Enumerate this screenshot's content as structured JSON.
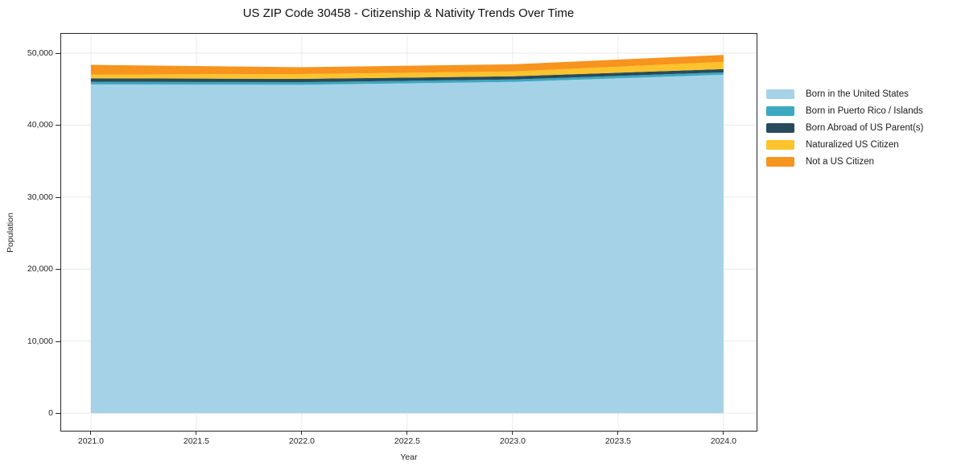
{
  "chart_data": {
    "type": "area",
    "stacked": true,
    "title": "US ZIP Code 30458 - Citizenship & Nativity Trends Over Time",
    "xlabel": "Year",
    "ylabel": "Population",
    "x": [
      2021,
      2022,
      2023,
      2024
    ],
    "series": [
      {
        "name": "Born in the United States",
        "color": "#A6D2E7",
        "values": [
          45650,
          45600,
          46000,
          47000
        ]
      },
      {
        "name": "Born in Puerto Rico / Islands",
        "color": "#3CA8C2",
        "values": [
          370,
          370,
          340,
          330
        ]
      },
      {
        "name": "Born Abroad of US Parent(s)",
        "color": "#284B5C",
        "values": [
          480,
          450,
          440,
          450
        ]
      },
      {
        "name": "Naturalized US Citizen",
        "color": "#FCC32C",
        "values": [
          520,
          670,
          670,
          1000
        ]
      },
      {
        "name": "Not a US Citizen",
        "color": "#F7941E",
        "values": [
          1350,
          950,
          1000,
          970
        ]
      }
    ],
    "stack_totals": [
      48370,
      48040,
      48450,
      49750
    ],
    "xlim": [
      2020.859,
      2024.153
    ],
    "ylim": [
      -2320,
      52680
    ],
    "x_ticks": {
      "values": [
        2021.0,
        2021.5,
        2022.0,
        2022.5,
        2023.0,
        2023.5,
        2024.0
      ],
      "labels": [
        "2021.0",
        "2021.5",
        "2022.0",
        "2022.5",
        "2023.0",
        "2023.5",
        "2024.0"
      ]
    },
    "y_ticks": {
      "values": [
        0,
        10000,
        20000,
        30000,
        40000,
        50000
      ],
      "labels": [
        "0",
        "10,000",
        "20,000",
        "30,000",
        "40,000",
        "50,000"
      ]
    },
    "grid": true,
    "legend_position": "right-outside"
  },
  "colors": {
    "grid": "#EAEAEA",
    "spine": "#262626",
    "background": "#FFFFFF"
  }
}
